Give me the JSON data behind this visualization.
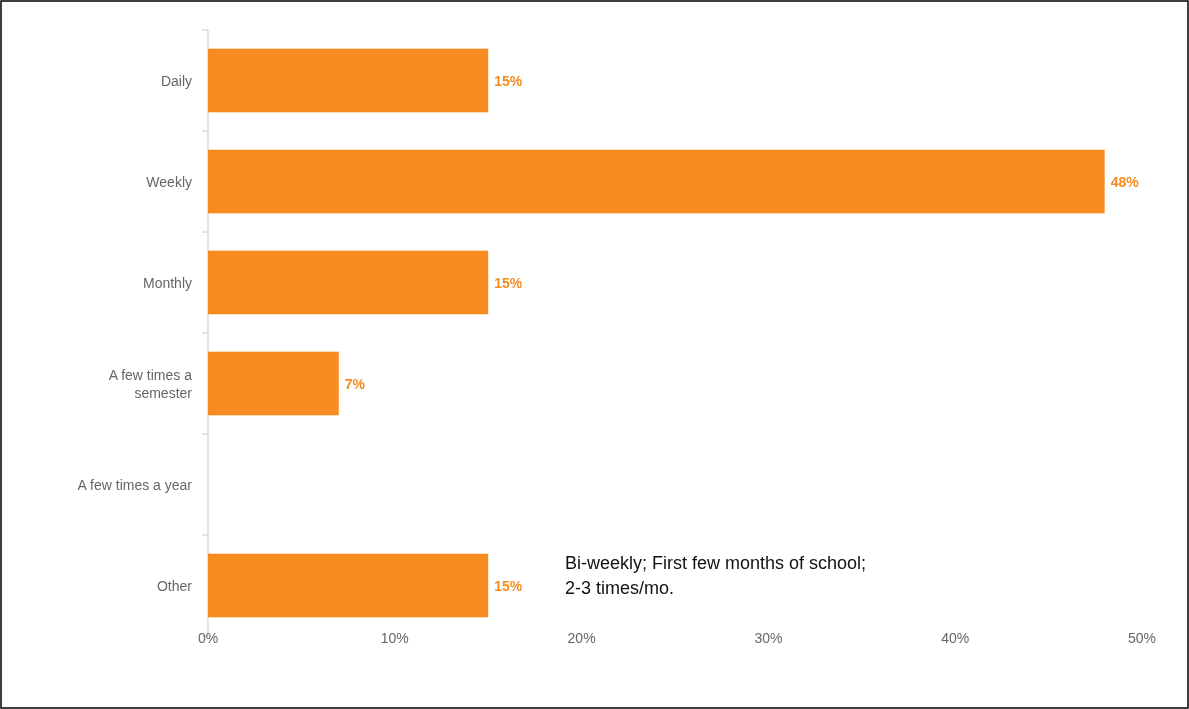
{
  "chart_data": {
    "type": "bar",
    "orientation": "horizontal",
    "categories": [
      "Daily",
      "Weekly",
      "Monthly",
      "A few times a semester",
      "A few times a year",
      "Other"
    ],
    "values": [
      15,
      48,
      15,
      7,
      0,
      15
    ],
    "color": "#f68b1f",
    "value_labels": [
      "15%",
      "48%",
      "15%",
      "7%",
      null,
      "15%"
    ],
    "xlim": [
      0,
      50
    ],
    "xticks": [
      {
        "value": 0,
        "label": "0%"
      },
      {
        "value": 10,
        "label": "10%"
      },
      {
        "value": 20,
        "label": "20%"
      },
      {
        "value": 30,
        "label": "30%"
      },
      {
        "value": 40,
        "label": "40%"
      },
      {
        "value": 50,
        "label": "50%"
      }
    ],
    "annotations": [
      "Bi-weekly; First few months of school; 2-3 times/mo."
    ],
    "grid": false
  }
}
